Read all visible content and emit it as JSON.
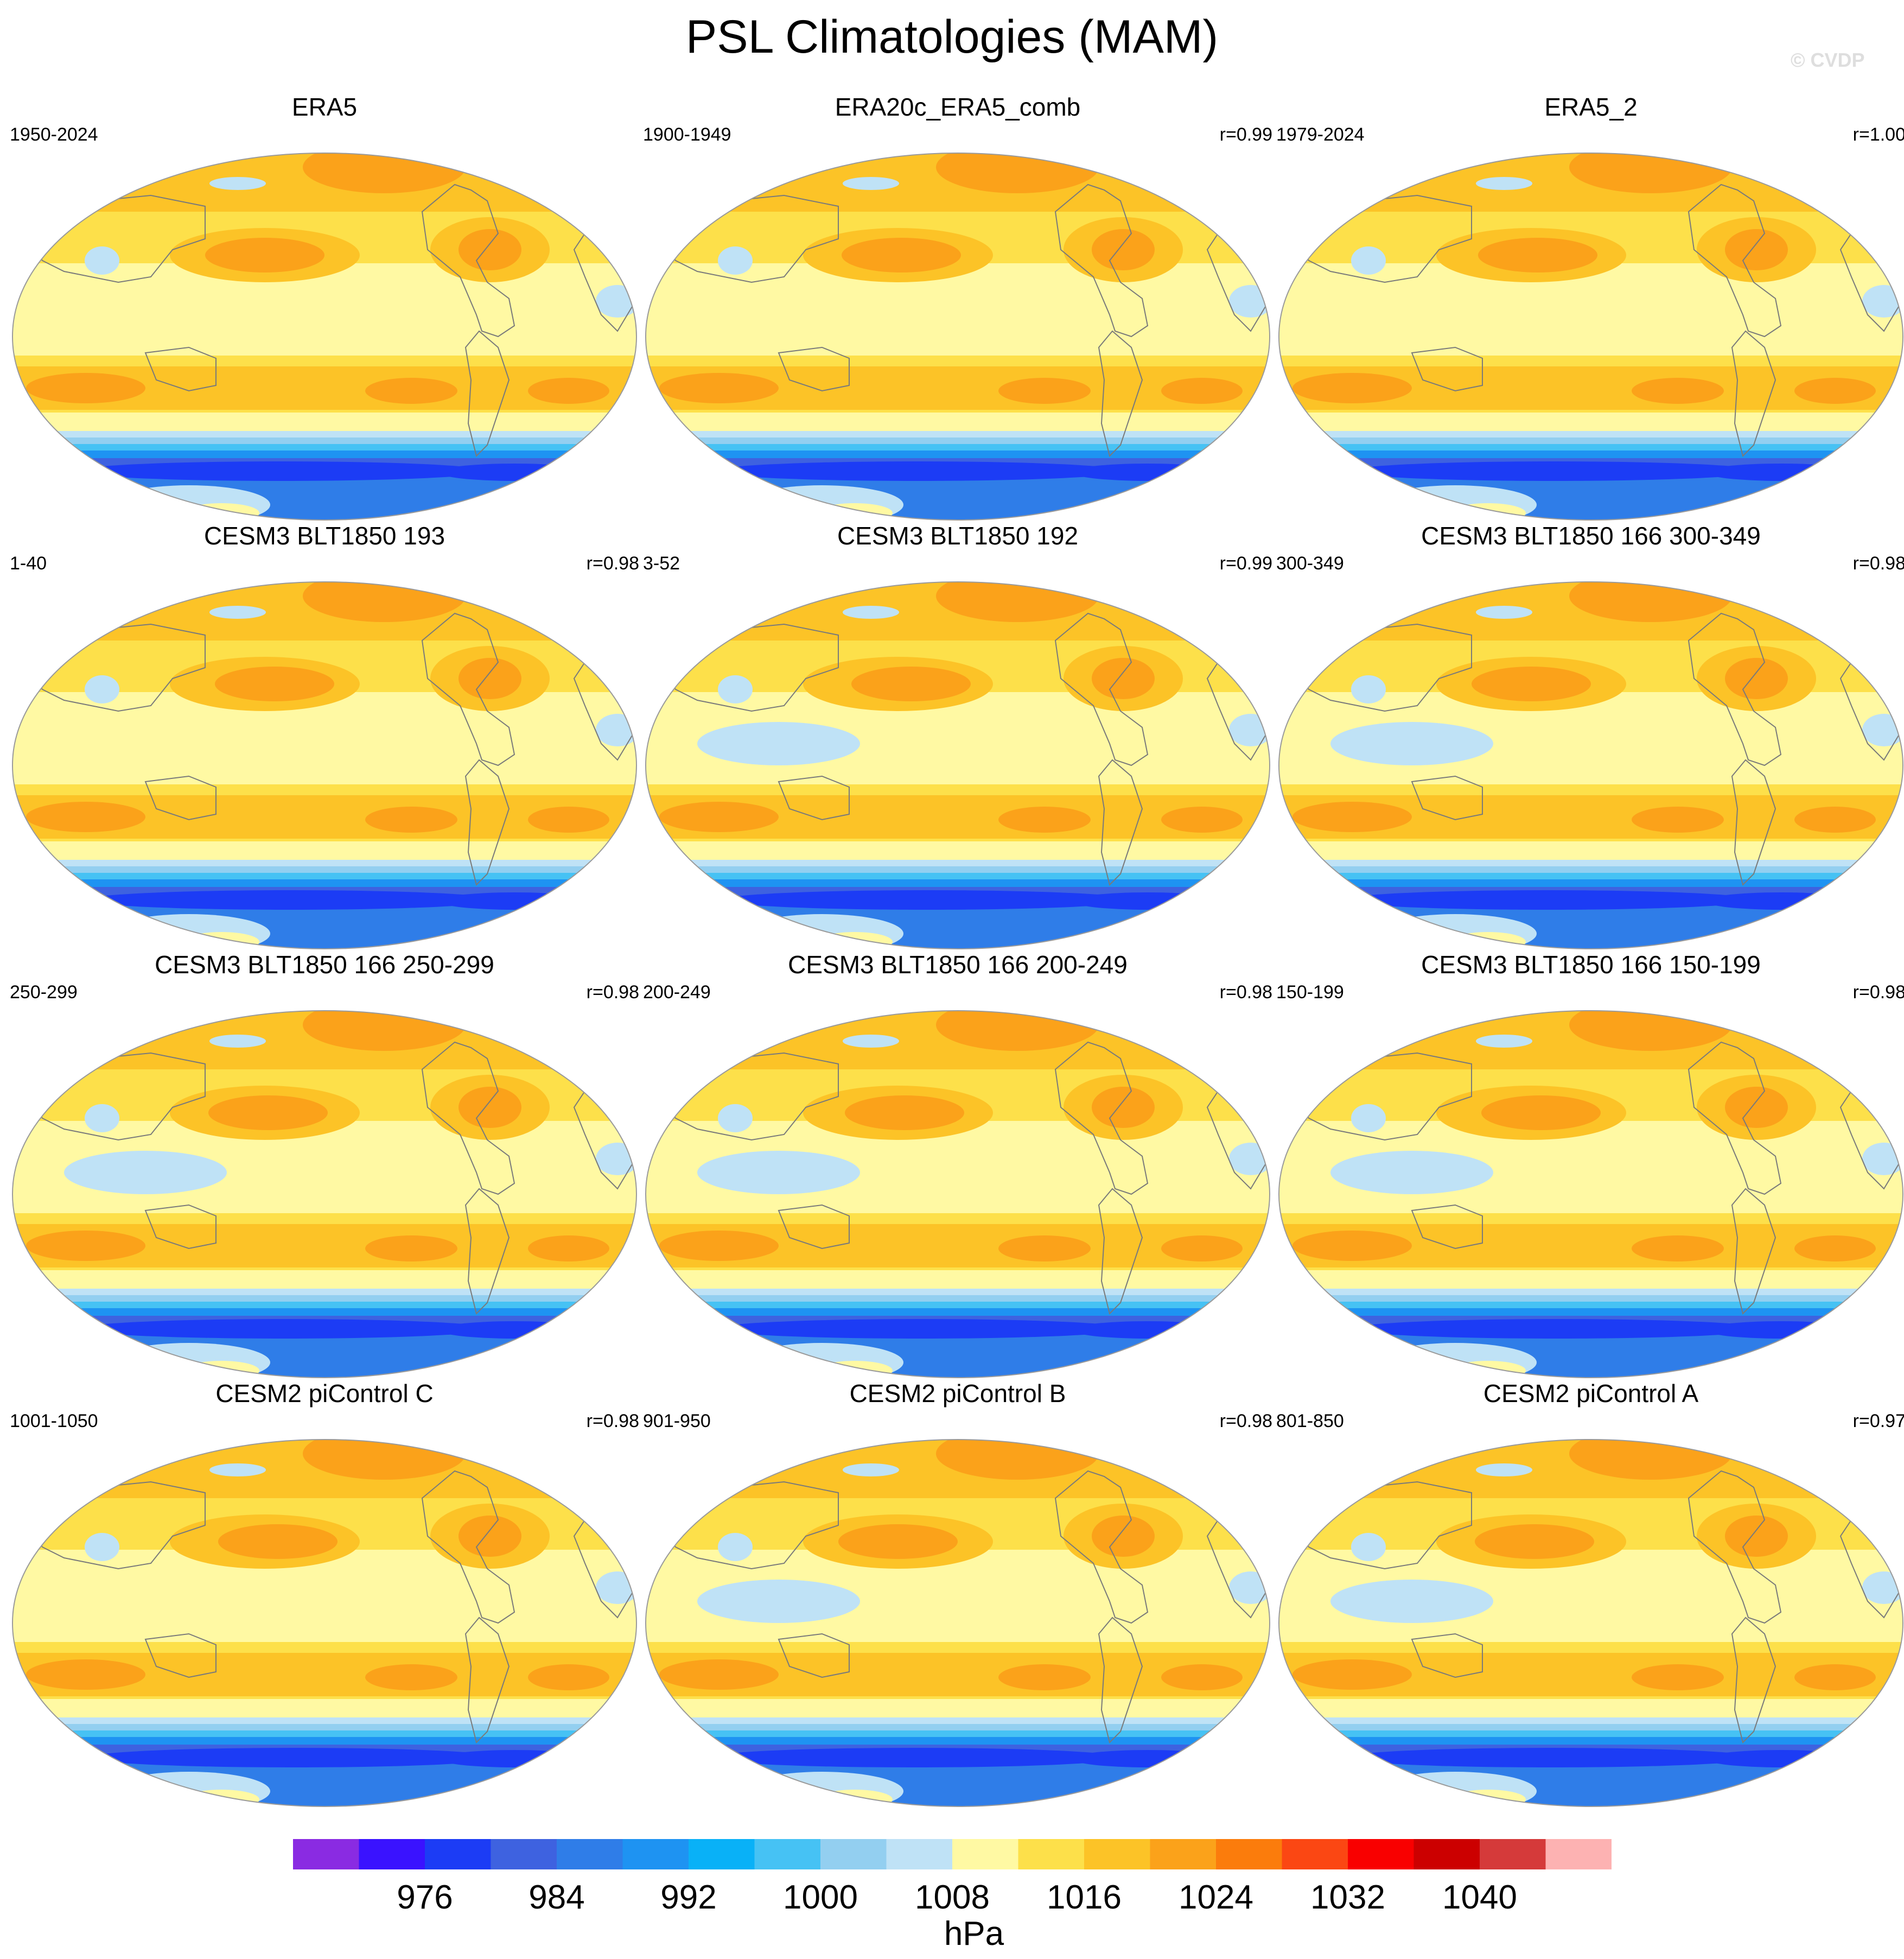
{
  "title": "PSL Climatologies (MAM)",
  "watermark": "© CVDP",
  "chart_data": {
    "type": "map-panels",
    "variable": "PSL",
    "season": "MAM",
    "projection": "robinson",
    "panels": [
      {
        "title": "ERA5",
        "period": "1950-2024",
        "r": ""
      },
      {
        "title": "ERA20c_ERA5_comb",
        "period": "1900-1949",
        "r": "r=0.99"
      },
      {
        "title": "ERA5_2",
        "period": "1979-2024",
        "r": "r=1.00"
      },
      {
        "title": "CESM3 BLT1850 193",
        "period": "1-40",
        "r": "r=0.98"
      },
      {
        "title": "CESM3 BLT1850 192",
        "period": "3-52",
        "r": "r=0.99"
      },
      {
        "title": "CESM3 BLT1850 166 300-349",
        "period": "300-349",
        "r": "r=0.98"
      },
      {
        "title": "CESM3 BLT1850 166 250-299",
        "period": "250-299",
        "r": "r=0.98"
      },
      {
        "title": "CESM3 BLT1850 166 200-249",
        "period": "200-249",
        "r": "r=0.98"
      },
      {
        "title": "CESM3 BLT1850 166 150-199",
        "period": "150-199",
        "r": "r=0.98"
      },
      {
        "title": "CESM2 piControl C",
        "period": "1001-1050",
        "r": "r=0.98"
      },
      {
        "title": "CESM2 piControl B",
        "period": "901-950",
        "r": "r=0.98"
      },
      {
        "title": "CESM2 piControl A",
        "period": "801-850",
        "r": "r=0.97"
      }
    ],
    "colorbar": {
      "unit": "hPa",
      "tick_labels": [
        "976",
        "984",
        "992",
        "1000",
        "1008",
        "1016",
        "1024",
        "1032",
        "1040"
      ],
      "tick_values": [
        976,
        984,
        992,
        1000,
        1008,
        1016,
        1024,
        1032,
        1040
      ],
      "range": [
        968,
        1048
      ],
      "colors": [
        "#8a2be2",
        "#3a12ff",
        "#1c3cf5",
        "#3e62e0",
        "#2f7de8",
        "#1e93f2",
        "#09b1f7",
        "#46c2f4",
        "#93cff0",
        "#bfe2f6",
        "#fff9a3",
        "#fde04a",
        "#fcc327",
        "#fba21a",
        "#fb7c0c",
        "#fb4713",
        "#f90000",
        "#cc0000",
        "#d53a3a",
        "#fdb2b2"
      ]
    }
  }
}
